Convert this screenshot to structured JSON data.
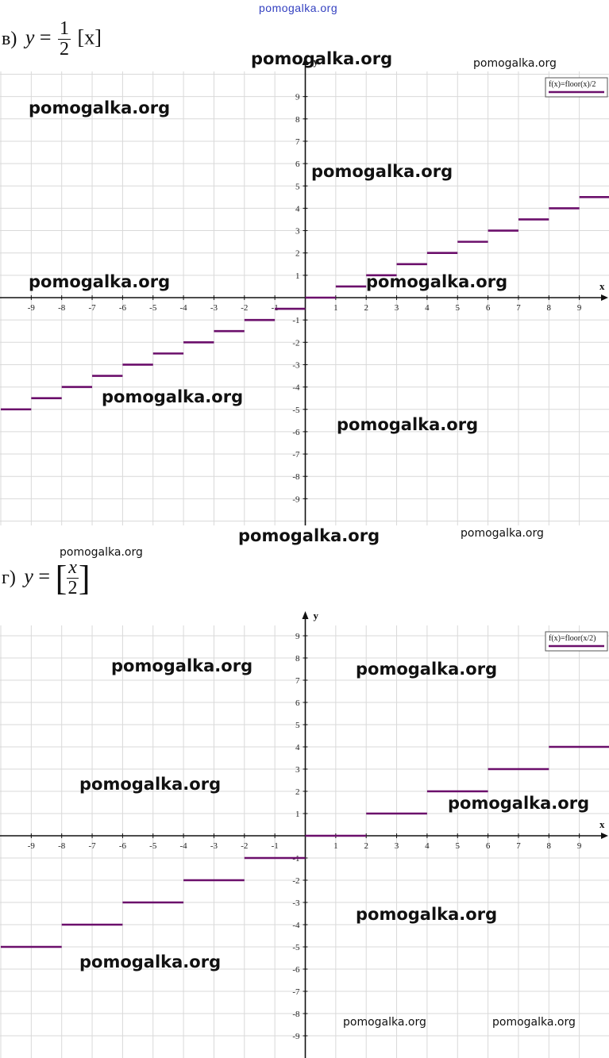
{
  "watermarks": {
    "top": "pomogalka.org",
    "text": "pomogalka.org"
  },
  "headings": {
    "v": {
      "label": "в)",
      "var": "y",
      "num": "1",
      "den": "2",
      "tail": "[x]"
    },
    "g": {
      "label": "г)",
      "var": "y",
      "num": "x",
      "den": "2"
    }
  },
  "colors": {
    "series": "#6b0f6b",
    "grid": "#d9d9d9",
    "axis": "#111111"
  },
  "chart_data": [
    {
      "type": "line",
      "step": true,
      "title": "",
      "xlabel": "x",
      "ylabel": "y",
      "xlim": [
        -10,
        10
      ],
      "ylim": [
        -10,
        10
      ],
      "x_ticks": [
        -9,
        -8,
        -7,
        -6,
        -5,
        -4,
        -3,
        -2,
        -1,
        1,
        2,
        3,
        4,
        5,
        6,
        7,
        8,
        9
      ],
      "y_ticks": [
        -9,
        -8,
        -7,
        -6,
        -5,
        -4,
        -3,
        -2,
        -1,
        1,
        2,
        3,
        4,
        5,
        6,
        7,
        8,
        9
      ],
      "grid": true,
      "legend_position": "top-right",
      "series": [
        {
          "name": "f(x)=floor(x)/2",
          "segments": [
            {
              "x0": -10,
              "x1": -9,
              "y": -5
            },
            {
              "x0": -9,
              "x1": -8,
              "y": -4.5
            },
            {
              "x0": -8,
              "x1": -7,
              "y": -4
            },
            {
              "x0": -7,
              "x1": -6,
              "y": -3.5
            },
            {
              "x0": -6,
              "x1": -5,
              "y": -3
            },
            {
              "x0": -5,
              "x1": -4,
              "y": -2.5
            },
            {
              "x0": -4,
              "x1": -3,
              "y": -2
            },
            {
              "x0": -3,
              "x1": -2,
              "y": -1.5
            },
            {
              "x0": -2,
              "x1": -1,
              "y": -1
            },
            {
              "x0": -1,
              "x1": 0,
              "y": -0.5
            },
            {
              "x0": 0,
              "x1": 1,
              "y": 0
            },
            {
              "x0": 1,
              "x1": 2,
              "y": 0.5
            },
            {
              "x0": 2,
              "x1": 3,
              "y": 1
            },
            {
              "x0": 3,
              "x1": 4,
              "y": 1.5
            },
            {
              "x0": 4,
              "x1": 5,
              "y": 2
            },
            {
              "x0": 5,
              "x1": 6,
              "y": 2.5
            },
            {
              "x0": 6,
              "x1": 7,
              "y": 3
            },
            {
              "x0": 7,
              "x1": 8,
              "y": 3.5
            },
            {
              "x0": 8,
              "x1": 9,
              "y": 4
            },
            {
              "x0": 9,
              "x1": 10,
              "y": 4.5
            }
          ]
        }
      ]
    },
    {
      "type": "line",
      "step": true,
      "title": "",
      "xlabel": "x",
      "ylabel": "y",
      "xlim": [
        -10,
        10
      ],
      "ylim": [
        -10,
        10
      ],
      "x_ticks": [
        -9,
        -8,
        -7,
        -6,
        -5,
        -4,
        -3,
        -2,
        -1,
        1,
        2,
        3,
        4,
        5,
        6,
        7,
        8,
        9
      ],
      "y_ticks": [
        -9,
        -8,
        -7,
        -6,
        -5,
        -4,
        -3,
        -2,
        -1,
        1,
        2,
        3,
        4,
        5,
        6,
        7,
        8,
        9
      ],
      "grid": true,
      "legend_position": "top-right",
      "series": [
        {
          "name": "f(x)=floor(x/2)",
          "segments": [
            {
              "x0": -10,
              "x1": -8,
              "y": -5
            },
            {
              "x0": -8,
              "x1": -6,
              "y": -4
            },
            {
              "x0": -6,
              "x1": -4,
              "y": -3
            },
            {
              "x0": -4,
              "x1": -2,
              "y": -2
            },
            {
              "x0": -2,
              "x1": 0,
              "y": -1
            },
            {
              "x0": 0,
              "x1": 2,
              "y": 0
            },
            {
              "x0": 2,
              "x1": 4,
              "y": 1
            },
            {
              "x0": 4,
              "x1": 6,
              "y": 2
            },
            {
              "x0": 6,
              "x1": 8,
              "y": 3
            },
            {
              "x0": 8,
              "x1": 10,
              "y": 4
            }
          ]
        }
      ]
    }
  ]
}
